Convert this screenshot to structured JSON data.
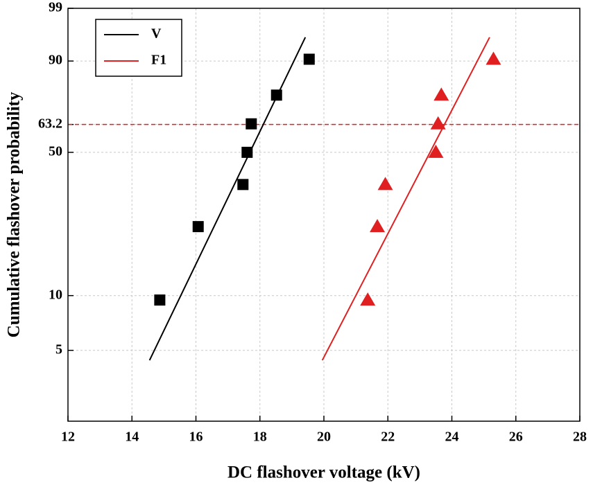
{
  "chart_data": {
    "type": "scatter",
    "x_label": "DC flashover voltage (kV)",
    "y_label": "Cumulative flashover probability",
    "xlim": [
      12,
      28
    ],
    "xticks": [
      12,
      14,
      16,
      18,
      20,
      22,
      24,
      26,
      28
    ],
    "ylim": [
      2,
      99
    ],
    "yticks": [
      5,
      10,
      50,
      63.2,
      90,
      99
    ],
    "y_scale": "weibull",
    "grid": true,
    "hline": {
      "value": 63.2,
      "color": "#e02020"
    },
    "legend_position": "upper left",
    "series": [
      {
        "name": "V",
        "color": "#000000",
        "mode": "line",
        "x": [
          14.55,
          19.42
        ],
        "values": [
          4.4,
          95.7
        ]
      },
      {
        "name": "F1",
        "color": "#e02020",
        "mode": "line",
        "x": [
          19.95,
          25.18
        ],
        "values": [
          4.4,
          95.7
        ]
      },
      {
        "color": "#000000",
        "mode": "square",
        "x": [
          14.87,
          16.07,
          17.47,
          17.6,
          17.73,
          18.52,
          19.54
        ],
        "values": [
          9.46,
          22.97,
          36.49,
          50,
          63.51,
          77.03,
          90.54
        ]
      },
      {
        "color": "#e02020",
        "mode": "triangle",
        "x": [
          21.37,
          21.67,
          21.92,
          23.5,
          23.57,
          23.67,
          25.3
        ],
        "values": [
          9.46,
          22.97,
          36.49,
          50,
          63.51,
          77.03,
          90.54
        ]
      }
    ]
  }
}
